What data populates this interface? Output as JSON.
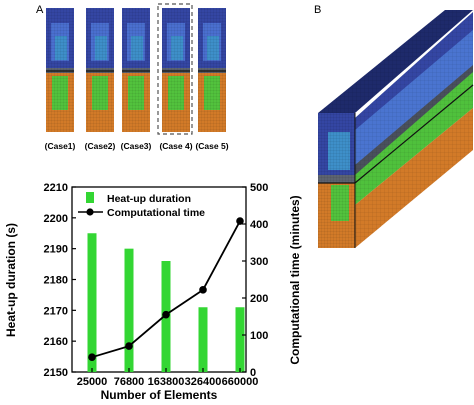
{
  "panels": {
    "a_letter": "A",
    "b_letter": "B",
    "case_labels": [
      "(Case1)",
      "(Case2)",
      "(Case3)",
      "(Case 4)",
      "(Case 5)"
    ],
    "highlighted_case_index": 3
  },
  "mesh_colors": {
    "navy": "#3446a3",
    "blue": "#4a6fcf",
    "cyan": "#3e8fc9",
    "green": "#52c23d",
    "gray": "#5d6470",
    "orange": "#d27a28",
    "dark_orange": "#b5641c"
  },
  "chart_data": {
    "type": "bar+line",
    "categories": [
      "25000",
      "76800",
      "163800",
      "326400",
      "660000"
    ],
    "series": [
      {
        "name": "Heat-up duration",
        "type": "bar",
        "axis": "left",
        "color": "#33d633",
        "values": [
          2195,
          2190,
          2186,
          2171,
          2171
        ]
      },
      {
        "name": "Computational time",
        "type": "line",
        "axis": "right",
        "color": "#000000",
        "values": [
          40,
          70,
          155,
          222,
          408
        ]
      }
    ],
    "xlabel": "Number of Elements",
    "ylabel": "Heat-up duration (s)",
    "y2label": "Computational time (minutes)",
    "ylim": [
      2150,
      2210
    ],
    "yticks": [
      "2150",
      "2160",
      "2170",
      "2180",
      "2190",
      "2200",
      "2210"
    ],
    "y2lim": [
      0,
      500
    ],
    "y2ticks": [
      "0",
      "100",
      "200",
      "300",
      "400",
      "500"
    ],
    "legend_position": "top-left",
    "grid": false
  }
}
